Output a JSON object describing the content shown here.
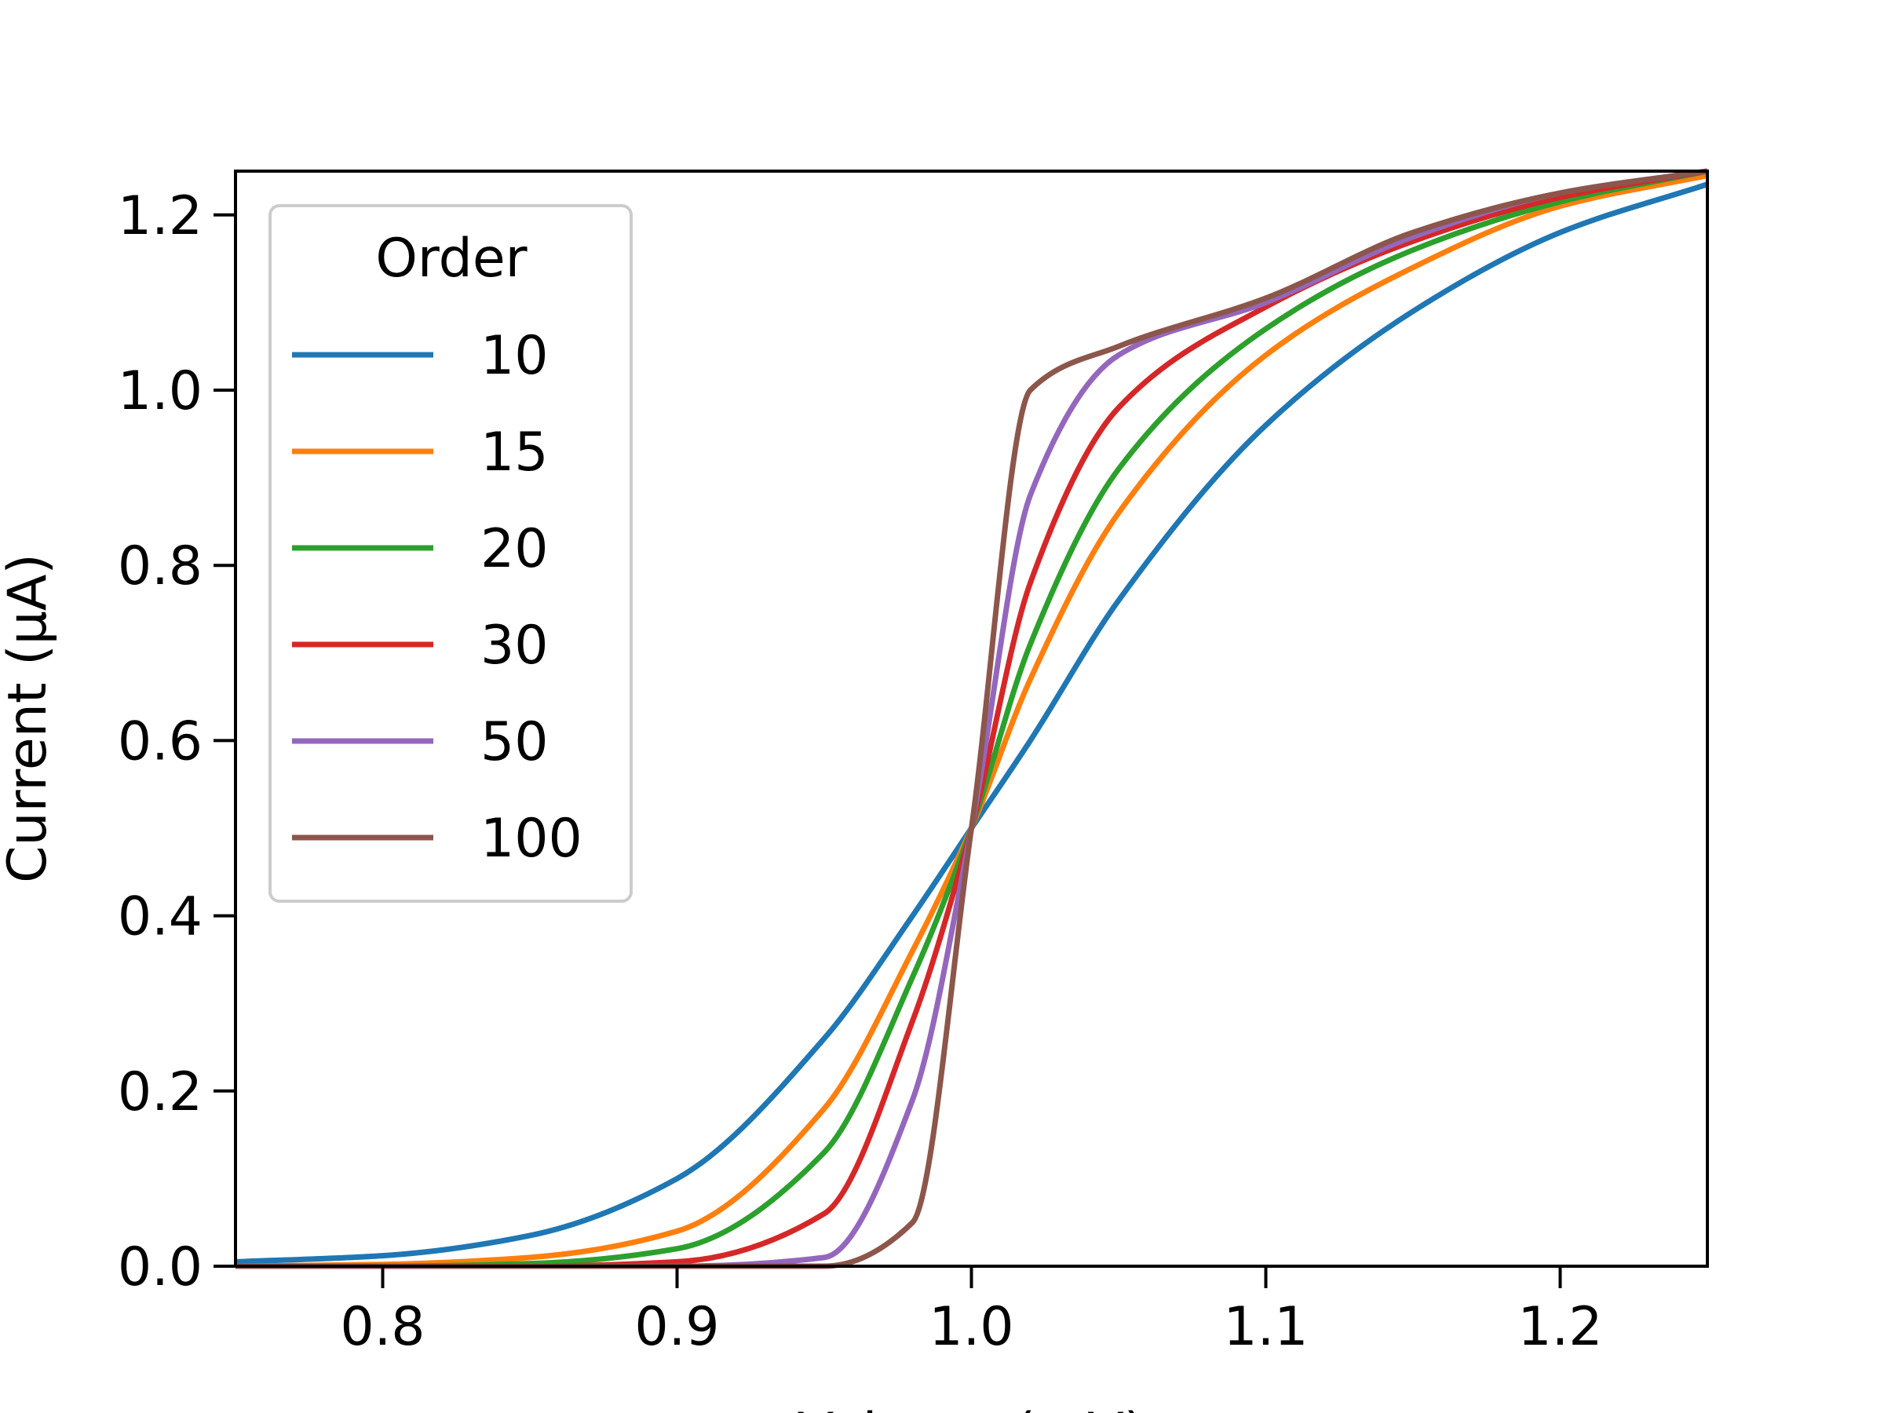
{
  "chart_data": {
    "type": "line",
    "xlabel": "Voltage (mV)",
    "ylabel": "Current (μA)",
    "xlim": [
      0.75,
      1.25
    ],
    "ylim": [
      0.0,
      1.25
    ],
    "xticks": [
      "0.8",
      "0.9",
      "1.0",
      "1.1",
      "1.2"
    ],
    "yticks": [
      "0.0",
      "0.2",
      "0.4",
      "0.6",
      "0.8",
      "1.0",
      "1.2"
    ],
    "grid": false,
    "legend": {
      "title": "Order",
      "placement": "upper-left"
    },
    "x": [
      0.75,
      0.8,
      0.85,
      0.9,
      0.95,
      0.98,
      1.0,
      1.02,
      1.05,
      1.1,
      1.15,
      1.2,
      1.25
    ],
    "series": [
      {
        "name": "10",
        "color": "#1f77b4",
        "values": [
          0.005,
          0.012,
          0.035,
          0.1,
          0.26,
          0.4,
          0.5,
          0.6,
          0.76,
          0.96,
          1.09,
          1.18,
          1.235
        ]
      },
      {
        "name": "15",
        "color": "#ff7f0e",
        "values": [
          0.0,
          0.002,
          0.01,
          0.04,
          0.18,
          0.36,
          0.5,
          0.67,
          0.86,
          1.04,
          1.14,
          1.21,
          1.245
        ]
      },
      {
        "name": "20",
        "color": "#2ca02c",
        "values": [
          0.0,
          0.0,
          0.003,
          0.02,
          0.13,
          0.33,
          0.5,
          0.71,
          0.91,
          1.07,
          1.16,
          1.215,
          1.25
        ]
      },
      {
        "name": "30",
        "color": "#d62728",
        "values": [
          0.0,
          0.0,
          0.0,
          0.005,
          0.06,
          0.28,
          0.5,
          0.78,
          0.98,
          1.095,
          1.17,
          1.22,
          1.25
        ]
      },
      {
        "name": "50",
        "color": "#9467bd",
        "values": [
          0.0,
          0.0,
          0.0,
          0.0,
          0.01,
          0.19,
          0.5,
          0.88,
          1.04,
          1.1,
          1.175,
          1.225,
          1.25
        ]
      },
      {
        "name": "100",
        "color": "#8c564b",
        "values": [
          0.0,
          0.0,
          0.0,
          0.0,
          0.0,
          0.05,
          0.5,
          1.0,
          1.05,
          1.105,
          1.18,
          1.225,
          1.25
        ]
      }
    ]
  }
}
